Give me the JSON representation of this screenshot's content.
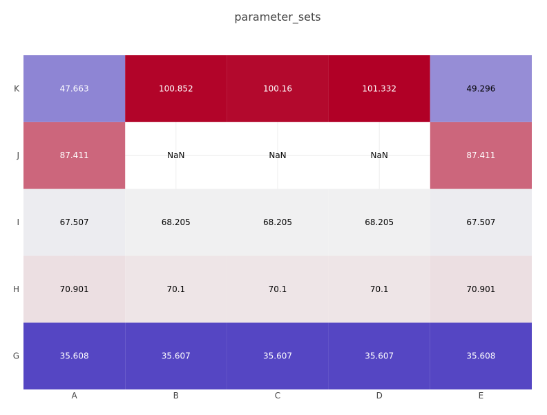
{
  "chart_data": {
    "type": "heatmap",
    "title": "parameter_sets",
    "x_categories": [
      "A",
      "B",
      "C",
      "D",
      "E"
    ],
    "y_categories": [
      "G",
      "H",
      "I",
      "J",
      "K"
    ],
    "z": [
      [
        35.608,
        35.607,
        35.607,
        35.607,
        35.608
      ],
      [
        70.901,
        70.1,
        70.1,
        70.1,
        70.901
      ],
      [
        67.507,
        68.205,
        68.205,
        68.205,
        67.507
      ],
      [
        87.411,
        null,
        null,
        null,
        87.411
      ],
      [
        47.663,
        100.852,
        100.16,
        101.332,
        49.296
      ]
    ],
    "missing_label": "NaN",
    "zlim": [
      35.607,
      101.332
    ],
    "colorscale": {
      "low": "#5546c3",
      "mid": "#f1f1f1",
      "high": "#b10026"
    },
    "grid": true,
    "legend": "none"
  }
}
